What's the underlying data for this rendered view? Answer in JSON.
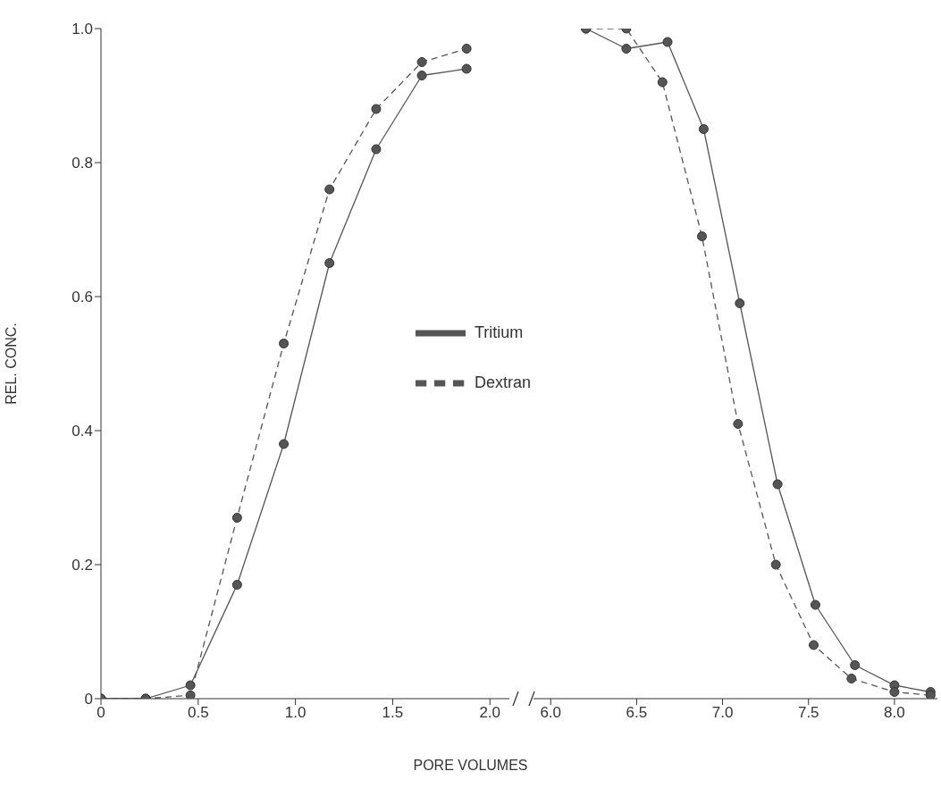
{
  "chart_data": [
    {
      "type": "line",
      "xlabel": "PORE VOLUMES",
      "ylabel": "REL. CONC.",
      "xlim": [
        0,
        2.1
      ],
      "xticks": [
        0,
        0.5,
        {
          "value": 1,
          "label": "1.0"
        },
        1.5,
        {
          "value": 2,
          "label": "2.0"
        }
      ],
      "ylim": [
        0,
        1
      ],
      "yticks": [
        0,
        0.2,
        0.4,
        0.6,
        0.8,
        {
          "value": 1,
          "label": "1.0"
        }
      ],
      "grid": false,
      "legend": "right",
      "marker": "circle",
      "series": [
        {
          "name": "Tritium",
          "color": "#555555",
          "line_style": "solid",
          "x": [
            0,
            0.23,
            0.46,
            0.7,
            0.94,
            1.175,
            1.415,
            1.65,
            1.88
          ],
          "values": [
            0,
            0,
            0.02,
            0.17,
            0.38,
            0.65,
            0.82,
            0.93,
            0.94
          ]
        },
        {
          "name": "Dextran",
          "color": "#555555",
          "line_style": "dashed",
          "x": [
            0,
            0.23,
            0.46,
            0.7,
            0.94,
            1.175,
            1.415,
            1.65,
            1.88
          ],
          "values": [
            0,
            0,
            0.005,
            0.27,
            0.53,
            0.76,
            0.88,
            0.95,
            0.97
          ]
        }
      ]
    },
    {
      "type": "line",
      "xlim": [
        5.9,
        8.25
      ],
      "xticks": [
        {
          "value": 6,
          "label": "6.0"
        },
        6.5,
        {
          "value": 7,
          "label": "7.0"
        },
        7.5,
        {
          "value": 8,
          "label": "8.0"
        }
      ],
      "ylim": [
        0,
        1
      ],
      "tick_labels": "x",
      "grid": false,
      "marker": "circle",
      "series": [
        {
          "color": "#555555",
          "line_style": "solid",
          "x": [
            6.205,
            6.44,
            6.68,
            6.89,
            7.1,
            7.32,
            7.54,
            7.77,
            8.0,
            8.21
          ],
          "values": [
            1,
            0.97,
            0.98,
            0.85,
            0.59,
            0.32,
            0.14,
            0.05,
            0.02,
            0.01
          ]
        },
        {
          "color": "#555555",
          "line_style": "dashed",
          "x": [
            6.205,
            6.44,
            6.65,
            6.88,
            7.09,
            7.31,
            7.53,
            7.75,
            8.0,
            8.21
          ],
          "values": [
            1,
            1,
            0.92,
            0.69,
            0.41,
            0.2,
            0.08,
            0.03,
            0.01,
            0.005
          ]
        }
      ]
    }
  ]
}
